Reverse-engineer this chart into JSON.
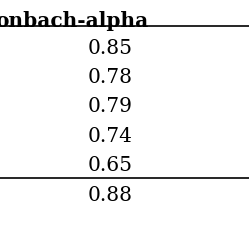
{
  "header": "onbach-alpha",
  "rows": [
    "0.85",
    "0.78",
    "0.79",
    "0.74",
    "0.65",
    "0.88"
  ],
  "separator_after_row": 5,
  "background_color": "#ffffff",
  "text_color": "#000000",
  "header_fontsize": 14.5,
  "cell_fontsize": 14.5,
  "line_color": "#000000",
  "line_width": 1.2,
  "fig_width": 2.49,
  "fig_height": 2.49,
  "dpi": 100
}
